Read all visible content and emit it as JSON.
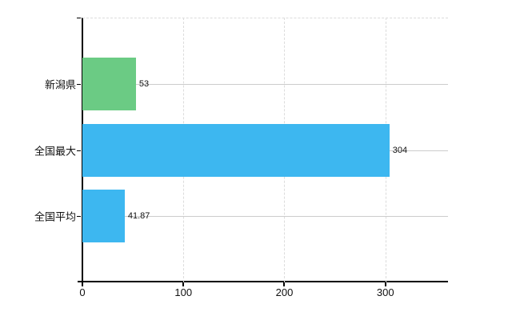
{
  "chart_data": {
    "type": "bar",
    "orientation": "horizontal",
    "title": "",
    "categories": [
      "新潟県",
      "全国最大",
      "全国平均"
    ],
    "values": [
      53,
      304,
      41.87
    ],
    "value_labels": [
      "53",
      "304",
      "41.87"
    ],
    "bar_colors": [
      "#6bcb84",
      "#3db7f0",
      "#3db7f0"
    ],
    "x_tick_labels": [
      "0",
      "100",
      "200",
      "300"
    ],
    "x_tick_values": [
      0,
      100,
      200,
      300
    ],
    "xlim": [
      0,
      362
    ],
    "xlabel": "",
    "ylabel": "",
    "grid": true,
    "legend": false,
    "colors": {
      "axis": "#000000",
      "horizontal_gridline": "#cccccc",
      "vertical_gridline": "#dcdcdc",
      "text": "#111111",
      "background": "#ffffff"
    }
  }
}
